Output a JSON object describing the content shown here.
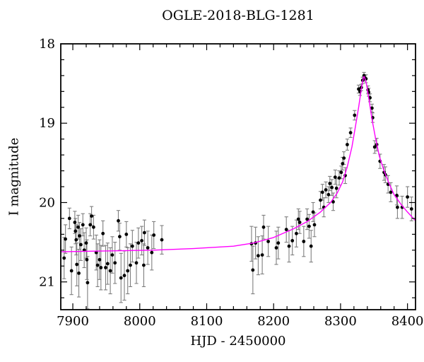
{
  "chart_data": {
    "type": "scatter",
    "title": "OGLE-2018-BLG-1281",
    "xlabel": "HJD - 2450000",
    "ylabel": "I magnitude",
    "xlim": [
      7882,
      8412
    ],
    "ylim_mag": [
      18,
      21.35
    ],
    "y_axis_inverted_magnitude": true,
    "grid": false,
    "legend": "none",
    "background": "#ffffff",
    "axis_color": "#000000",
    "x_ticks": {
      "major": [
        7900,
        8000,
        8100,
        8200,
        8300,
        8400
      ],
      "labels": [
        "7900",
        "8000",
        "8100",
        "8200",
        "8300",
        "8400"
      ],
      "minor_step": 20
    },
    "y_ticks": {
      "major": [
        18,
        19,
        20,
        21
      ],
      "labels": [
        "18",
        "19",
        "20",
        "21"
      ],
      "minor_step": 0.2
    },
    "photometry": {
      "marker_color": "#000000",
      "errorbar_color": "#7f7f7f",
      "points_t_mag_err": [
        [
          7887,
          20.7,
          0.26
        ],
        [
          7889,
          20.46,
          0.18
        ],
        [
          7895,
          20.2,
          0.13
        ],
        [
          7898,
          20.86,
          0.3
        ],
        [
          7903,
          20.25,
          0.14
        ],
        [
          7904,
          20.36,
          0.16
        ],
        [
          7905,
          20.47,
          0.19
        ],
        [
          7906,
          20.78,
          0.27
        ],
        [
          7908,
          20.31,
          0.15
        ],
        [
          7909,
          20.89,
          0.3
        ],
        [
          7910,
          20.42,
          0.17
        ],
        [
          7912,
          20.53,
          0.2
        ],
        [
          7915,
          20.28,
          0.14
        ],
        [
          7917,
          20.6,
          0.22
        ],
        [
          7920,
          20.51,
          0.19
        ],
        [
          7921,
          20.72,
          0.25
        ],
        [
          7922,
          21.01,
          0.33
        ],
        [
          7926,
          20.28,
          0.14
        ],
        [
          7928,
          20.17,
          0.12
        ],
        [
          7931,
          20.31,
          0.15
        ],
        [
          7935,
          20.63,
          0.22
        ],
        [
          7937,
          20.79,
          0.27
        ],
        [
          7940,
          20.72,
          0.25
        ],
        [
          7942,
          20.82,
          0.28
        ],
        [
          7945,
          20.39,
          0.16
        ],
        [
          7949,
          20.82,
          0.28
        ],
        [
          7952,
          20.77,
          0.26
        ],
        [
          7956,
          20.86,
          0.29
        ],
        [
          7959,
          20.66,
          0.23
        ],
        [
          7963,
          20.76,
          0.26
        ],
        [
          7968,
          20.23,
          0.13
        ],
        [
          7970,
          20.43,
          0.17
        ],
        [
          7972,
          20.95,
          0.31
        ],
        [
          7977,
          20.92,
          0.31
        ],
        [
          7980,
          20.4,
          0.16
        ],
        [
          7982,
          20.86,
          0.29
        ],
        [
          7986,
          20.79,
          0.27
        ],
        [
          7989,
          20.55,
          0.2
        ],
        [
          7995,
          20.76,
          0.26
        ],
        [
          7998,
          20.51,
          0.19
        ],
        [
          8003,
          20.48,
          0.18
        ],
        [
          8006,
          20.79,
          0.27
        ],
        [
          8007,
          20.38,
          0.16
        ],
        [
          8012,
          20.57,
          0.21
        ],
        [
          8018,
          20.63,
          0.22
        ],
        [
          8021,
          20.41,
          0.17
        ],
        [
          8033,
          20.47,
          0.18
        ],
        [
          8167,
          20.52,
          0.22
        ],
        [
          8169,
          20.85,
          0.3
        ],
        [
          8173,
          20.51,
          0.2
        ],
        [
          8177,
          20.67,
          0.24
        ],
        [
          8183,
          20.66,
          0.24
        ],
        [
          8185,
          20.31,
          0.15
        ],
        [
          8192,
          20.49,
          0.19
        ],
        [
          8204,
          20.57,
          0.21
        ],
        [
          8207,
          20.51,
          0.2
        ],
        [
          8219,
          20.34,
          0.16
        ],
        [
          8223,
          20.55,
          0.2
        ],
        [
          8228,
          20.48,
          0.18
        ],
        [
          8234,
          20.39,
          0.17
        ],
        [
          8237,
          20.21,
          0.13
        ],
        [
          8239,
          20.25,
          0.14
        ],
        [
          8245,
          20.49,
          0.19
        ],
        [
          8250,
          20.21,
          0.13
        ],
        [
          8253,
          20.3,
          0.15
        ],
        [
          8256,
          20.55,
          0.2
        ],
        [
          8259,
          20.12,
          0.12
        ],
        [
          8261,
          20.28,
          0.15
        ],
        [
          8270,
          19.97,
          0.11
        ],
        [
          8273,
          19.87,
          0.1
        ],
        [
          8275,
          20.06,
          0.12
        ],
        [
          8278,
          19.84,
          0.1
        ],
        [
          8282,
          19.9,
          0.1
        ],
        [
          8284,
          19.76,
          0.09
        ],
        [
          8287,
          19.81,
          0.1
        ],
        [
          8289,
          19.99,
          0.11
        ],
        [
          8292,
          19.68,
          0.09
        ],
        [
          8294,
          19.82,
          0.12
        ],
        [
          8298,
          19.69,
          0.09
        ],
        [
          8301,
          19.62,
          0.08
        ],
        [
          8303,
          19.51,
          0.08
        ],
        [
          8305,
          19.44,
          0.08
        ],
        [
          8307,
          19.66,
          0.1
        ],
        [
          8310,
          19.27,
          0.07
        ],
        [
          8315,
          19.12,
          0.06
        ],
        [
          8321,
          18.9,
          0.06
        ],
        [
          8327,
          18.57,
          0.05
        ],
        [
          8329,
          18.6,
          0.05
        ],
        [
          8331,
          18.55,
          0.04
        ],
        [
          8333,
          18.46,
          0.04
        ],
        [
          8335,
          18.4,
          0.04
        ],
        [
          8336,
          18.43,
          0.04
        ],
        [
          8338,
          18.44,
          0.05
        ],
        [
          8341,
          18.58,
          0.05
        ],
        [
          8342,
          18.61,
          0.05
        ],
        [
          8344,
          18.68,
          0.05
        ],
        [
          8347,
          18.81,
          0.05
        ],
        [
          8348,
          18.93,
          0.06
        ],
        [
          8351,
          19.3,
          0.08
        ],
        [
          8354,
          19.27,
          0.08
        ],
        [
          8359,
          19.48,
          0.09
        ],
        [
          8365,
          19.62,
          0.1
        ],
        [
          8367,
          19.65,
          0.1
        ],
        [
          8371,
          19.77,
          0.11
        ],
        [
          8375,
          19.87,
          0.12
        ],
        [
          8384,
          19.91,
          0.12
        ],
        [
          8385,
          20.06,
          0.14
        ],
        [
          8392,
          20.06,
          0.14
        ],
        [
          8400,
          19.93,
          0.13
        ],
        [
          8406,
          20.08,
          0.15
        ]
      ]
    },
    "model_curve": {
      "color": "#ff00ff",
      "points_t_mag": [
        [
          7882,
          20.62
        ],
        [
          7950,
          20.61
        ],
        [
          8020,
          20.6
        ],
        [
          8080,
          20.58
        ],
        [
          8140,
          20.55
        ],
        [
          8170,
          20.51
        ],
        [
          8200,
          20.44
        ],
        [
          8230,
          20.33
        ],
        [
          8250,
          20.24
        ],
        [
          8270,
          20.12
        ],
        [
          8285,
          20.0
        ],
        [
          8295,
          19.88
        ],
        [
          8303,
          19.74
        ],
        [
          8310,
          19.55
        ],
        [
          8317,
          19.3
        ],
        [
          8322,
          19.05
        ],
        [
          8327,
          18.8
        ],
        [
          8331,
          18.57
        ],
        [
          8334,
          18.43
        ],
        [
          8335,
          18.41
        ],
        [
          8337,
          18.45
        ],
        [
          8339,
          18.52
        ],
        [
          8343,
          18.73
        ],
        [
          8347,
          18.95
        ],
        [
          8352,
          19.18
        ],
        [
          8358,
          19.42
        ],
        [
          8365,
          19.6
        ],
        [
          8372,
          19.75
        ],
        [
          8380,
          19.9
        ],
        [
          8390,
          20.02
        ],
        [
          8400,
          20.12
        ],
        [
          8412,
          20.23
        ]
      ]
    }
  }
}
